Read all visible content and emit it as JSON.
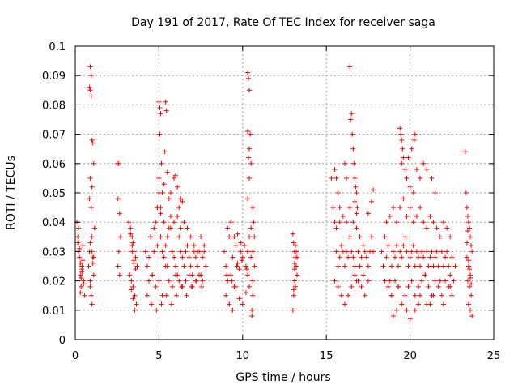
{
  "chart_data": {
    "type": "scatter",
    "title": "Day 191 of 2017, Rate Of TEC Index for receiver saga",
    "xlabel": "GPS time / hours",
    "ylabel": "ROTI / TECUs",
    "xlim": [
      0,
      25
    ],
    "ylim": [
      0,
      0.1
    ],
    "xticks": [
      "0",
      "5",
      "10",
      "15",
      "20",
      "25"
    ],
    "yticks": [
      "0",
      "0.01",
      "0.02",
      "0.03",
      "0.04",
      "0.05",
      "0.06",
      "0.07",
      "0.08",
      "0.09",
      "0.1"
    ],
    "grid": true,
    "marker": "+",
    "series_color": "#ff0000",
    "series": [
      {
        "x": [
          0.1,
          0.15,
          0.2,
          0.25,
          0.3,
          0.35,
          0.4,
          0.45,
          0.5,
          0.55,
          0.2,
          0.3,
          0.4,
          0.5,
          0.25,
          0.35,
          0.45,
          0.15,
          0.3,
          0.4,
          0.8,
          0.85,
          0.9,
          0.95,
          1.0,
          1.05,
          1.1,
          1.15,
          0.9,
          0.95,
          0.85,
          0.9,
          0.95,
          1.0,
          1.05,
          0.9,
          1.0,
          1.1,
          0.85,
          0.95,
          1.0,
          1.05,
          0.9,
          1.0,
          1.1,
          0.9,
          2.5,
          2.6,
          2.55,
          2.65,
          2.7,
          2.6,
          2.55,
          2.65,
          3.2,
          3.3,
          3.4,
          3.5,
          3.6,
          3.7,
          3.25,
          3.35,
          3.45,
          3.55,
          3.65,
          3.3,
          3.4,
          3.5,
          3.6,
          3.35,
          3.45,
          3.55,
          3.4,
          3.5,
          3.45,
          4.2,
          4.3,
          4.4,
          4.5,
          4.6,
          4.7,
          4.8,
          4.9,
          5.0,
          5.1,
          5.2,
          5.3,
          5.4,
          5.5,
          5.6,
          5.7,
          5.8,
          5.9,
          6.0,
          6.1,
          6.2,
          6.3,
          6.4,
          6.5,
          6.6,
          6.7,
          6.8,
          6.9,
          7.0,
          7.1,
          7.2,
          7.3,
          7.4,
          7.5,
          7.6,
          7.7,
          7.8,
          4.4,
          4.6,
          4.8,
          5.0,
          5.2,
          5.4,
          5.6,
          5.8,
          6.0,
          6.2,
          6.4,
          6.6,
          6.8,
          7.0,
          7.2,
          7.4,
          7.6,
          4.5,
          4.7,
          4.9,
          5.1,
          5.3,
          5.5,
          5.7,
          5.9,
          6.1,
          6.3,
          6.5,
          6.7,
          6.9,
          7.1,
          7.3,
          7.5,
          7.7,
          4.3,
          4.55,
          4.85,
          5.15,
          5.45,
          5.75,
          6.05,
          6.35,
          6.65,
          6.95,
          7.25,
          7.55,
          5.0,
          5.05,
          5.1,
          5.05,
          5.15,
          5.4,
          5.45,
          5.35,
          5.3,
          5.5,
          5.0,
          5.2,
          5.6,
          5.9,
          6.0,
          6.1,
          6.2,
          6.3,
          4.9,
          5.1,
          5.7,
          6.4,
          8.9,
          9.0,
          9.1,
          9.2,
          9.3,
          9.4,
          9.5,
          9.6,
          9.7,
          9.8,
          9.9,
          10.0,
          10.1,
          10.2,
          10.3,
          10.4,
          10.5,
          10.6,
          10.7,
          9.0,
          9.2,
          9.4,
          9.6,
          9.8,
          10.0,
          10.2,
          10.4,
          10.6,
          9.1,
          9.3,
          9.5,
          9.7,
          9.9,
          10.1,
          10.3,
          10.5,
          9.05,
          9.35,
          9.65,
          9.95,
          10.25,
          10.55,
          10.3,
          10.35,
          10.4,
          10.3,
          10.45,
          10.4,
          10.35,
          10.5,
          10.4,
          10.3,
          10.6,
          10.65,
          10.7,
          10.6,
          10.55,
          13.0,
          13.05,
          13.1,
          13.15,
          13.2,
          13.25,
          13.1,
          13.15,
          13.05,
          13.2,
          13.1,
          13.0,
          13.15,
          13.1,
          13.25,
          13.05,
          15.3,
          15.4,
          15.5,
          15.6,
          15.7,
          15.8,
          15.9,
          16.0,
          16.1,
          16.2,
          16.3,
          16.4,
          16.5,
          16.6,
          16.7,
          16.8,
          16.9,
          17.0,
          17.1,
          17.2,
          17.3,
          17.4,
          17.5,
          17.6,
          17.7,
          17.8,
          15.5,
          15.7,
          15.9,
          16.1,
          16.3,
          16.5,
          16.7,
          16.9,
          17.1,
          17.3,
          17.5,
          15.6,
          15.8,
          16.0,
          16.2,
          16.4,
          16.6,
          16.8,
          17.0,
          17.2,
          16.4,
          16.5,
          16.45,
          16.55,
          16.6,
          16.65,
          16.7,
          16.75,
          16.8,
          16.7,
          16.85,
          16.8,
          15.5,
          15.6,
          15.7,
          15.8,
          16.1,
          16.2,
          17.8,
          17.7,
          17.5,
          18.3,
          18.4,
          18.5,
          18.6,
          18.7,
          18.8,
          18.9,
          19.0,
          19.1,
          19.2,
          19.3,
          19.4,
          19.5,
          19.6,
          19.7,
          19.8,
          19.9,
          20.0,
          20.1,
          20.2,
          20.3,
          20.4,
          20.5,
          20.6,
          20.7,
          20.8,
          20.9,
          21.0,
          21.1,
          21.2,
          21.3,
          21.4,
          21.5,
          21.6,
          21.7,
          21.8,
          21.9,
          22.0,
          22.1,
          22.2,
          22.3,
          22.4,
          22.5,
          22.6,
          22.7,
          18.5,
          18.7,
          18.9,
          19.1,
          19.3,
          19.5,
          19.7,
          19.9,
          20.1,
          20.3,
          20.5,
          20.7,
          20.9,
          21.1,
          21.3,
          21.5,
          21.7,
          21.9,
          22.1,
          22.3,
          22.5,
          18.6,
          18.8,
          19.0,
          19.2,
          19.4,
          19.6,
          19.8,
          20.0,
          20.2,
          20.4,
          20.6,
          20.8,
          21.0,
          21.2,
          21.4,
          21.6,
          21.8,
          22.0,
          22.2,
          22.4,
          19.4,
          19.45,
          19.5,
          19.55,
          19.6,
          19.5,
          19.7,
          19.8,
          20.0,
          20.2,
          20.3,
          20.25,
          20.1,
          19.9,
          20.4,
          20.6,
          20.8,
          21.0,
          21.3,
          21.5,
          19.0,
          19.2,
          20.0,
          20.3,
          20.5,
          21.2,
          18.9,
          19.3,
          19.8,
          20.6,
          21.0,
          21.4,
          22.0,
          22.4,
          23.3,
          23.35,
          23.4,
          23.45,
          23.5,
          23.55,
          23.6,
          23.65,
          23.7,
          23.4,
          23.5,
          23.6,
          23.45,
          23.55,
          23.65,
          23.5,
          23.6,
          23.7,
          23.4,
          23.5,
          23.6,
          23.45,
          23.55,
          23.65
        ],
        "y": [
          0.04,
          0.035,
          0.03,
          0.028,
          0.022,
          0.018,
          0.025,
          0.032,
          0.02,
          0.015,
          0.038,
          0.026,
          0.024,
          0.019,
          0.031,
          0.021,
          0.027,
          0.033,
          0.016,
          0.023,
          0.025,
          0.03,
          0.02,
          0.015,
          0.035,
          0.028,
          0.022,
          0.038,
          0.093,
          0.09,
          0.086,
          0.085,
          0.083,
          0.068,
          0.067,
          0.055,
          0.052,
          0.06,
          0.048,
          0.045,
          0.03,
          0.026,
          0.018,
          0.012,
          0.028,
          0.033,
          0.06,
          0.06,
          0.048,
          0.043,
          0.035,
          0.03,
          0.025,
          0.022,
          0.04,
          0.038,
          0.035,
          0.03,
          0.028,
          0.025,
          0.022,
          0.02,
          0.018,
          0.015,
          0.012,
          0.036,
          0.032,
          0.027,
          0.024,
          0.017,
          0.014,
          0.01,
          0.03,
          0.026,
          0.033,
          0.03,
          0.025,
          0.028,
          0.035,
          0.022,
          0.03,
          0.04,
          0.045,
          0.05,
          0.045,
          0.03,
          0.028,
          0.032,
          0.025,
          0.038,
          0.042,
          0.03,
          0.028,
          0.025,
          0.022,
          0.035,
          0.03,
          0.028,
          0.025,
          0.03,
          0.032,
          0.028,
          0.025,
          0.022,
          0.03,
          0.028,
          0.025,
          0.03,
          0.022,
          0.028,
          0.032,
          0.025,
          0.02,
          0.022,
          0.018,
          0.02,
          0.015,
          0.025,
          0.02,
          0.018,
          0.022,
          0.02,
          0.018,
          0.02,
          0.022,
          0.018,
          0.02,
          0.022,
          0.02,
          0.035,
          0.038,
          0.032,
          0.035,
          0.04,
          0.035,
          0.038,
          0.04,
          0.042,
          0.038,
          0.04,
          0.038,
          0.035,
          0.032,
          0.03,
          0.035,
          0.03,
          0.015,
          0.012,
          0.01,
          0.012,
          0.015,
          0.012,
          0.015,
          0.018,
          0.015,
          0.018,
          0.02,
          0.018,
          0.081,
          0.079,
          0.077,
          0.07,
          0.06,
          0.081,
          0.078,
          0.064,
          0.053,
          0.057,
          0.055,
          0.05,
          0.048,
          0.055,
          0.056,
          0.052,
          0.045,
          0.048,
          0.045,
          0.043,
          0.05,
          0.047,
          0.03,
          0.025,
          0.02,
          0.035,
          0.022,
          0.028,
          0.018,
          0.032,
          0.026,
          0.024,
          0.03,
          0.028,
          0.032,
          0.025,
          0.022,
          0.035,
          0.028,
          0.02,
          0.025,
          0.015,
          0.012,
          0.01,
          0.018,
          0.014,
          0.012,
          0.016,
          0.018,
          0.015,
          0.038,
          0.04,
          0.035,
          0.036,
          0.033,
          0.032,
          0.03,
          0.038,
          0.022,
          0.02,
          0.025,
          0.027,
          0.024,
          0.01,
          0.091,
          0.089,
          0.085,
          0.071,
          0.07,
          0.065,
          0.062,
          0.06,
          0.055,
          0.048,
          0.045,
          0.04,
          0.035,
          0.03,
          0.008,
          0.036,
          0.033,
          0.03,
          0.028,
          0.025,
          0.022,
          0.02,
          0.018,
          0.015,
          0.03,
          0.026,
          0.01,
          0.032,
          0.024,
          0.028,
          0.017,
          0.055,
          0.045,
          0.04,
          0.03,
          0.025,
          0.028,
          0.032,
          0.03,
          0.025,
          0.03,
          0.028,
          0.035,
          0.03,
          0.028,
          0.025,
          0.02,
          0.03,
          0.025,
          0.028,
          0.022,
          0.03,
          0.028,
          0.025,
          0.03,
          0.035,
          0.03,
          0.02,
          0.018,
          0.015,
          0.012,
          0.015,
          0.018,
          0.022,
          0.02,
          0.018,
          0.015,
          0.02,
          0.038,
          0.04,
          0.042,
          0.04,
          0.045,
          0.04,
          0.038,
          0.035,
          0.032,
          0.093,
          0.077,
          0.075,
          0.07,
          0.065,
          0.06,
          0.055,
          0.052,
          0.05,
          0.047,
          0.045,
          0.043,
          0.058,
          0.055,
          0.05,
          0.045,
          0.06,
          0.055,
          0.051,
          0.047,
          0.043,
          0.03,
          0.025,
          0.035,
          0.028,
          0.032,
          0.02,
          0.025,
          0.03,
          0.028,
          0.032,
          0.025,
          0.03,
          0.028,
          0.032,
          0.035,
          0.03,
          0.025,
          0.028,
          0.03,
          0.032,
          0.025,
          0.03,
          0.028,
          0.025,
          0.03,
          0.028,
          0.022,
          0.03,
          0.025,
          0.028,
          0.03,
          0.025,
          0.028,
          0.03,
          0.025,
          0.02,
          0.03,
          0.025,
          0.028,
          0.03,
          0.025,
          0.022,
          0.028,
          0.02,
          0.025,
          0.02,
          0.018,
          0.015,
          0.02,
          0.018,
          0.012,
          0.015,
          0.018,
          0.02,
          0.015,
          0.018,
          0.02,
          0.022,
          0.018,
          0.015,
          0.02,
          0.018,
          0.015,
          0.02,
          0.018,
          0.015,
          0.04,
          0.042,
          0.045,
          0.04,
          0.045,
          0.048,
          0.042,
          0.045,
          0.04,
          0.042,
          0.045,
          0.04,
          0.038,
          0.042,
          0.04,
          0.038,
          0.035,
          0.04,
          0.038,
          0.035,
          0.072,
          0.07,
          0.068,
          0.065,
          0.062,
          0.06,
          0.058,
          0.055,
          0.052,
          0.05,
          0.07,
          0.068,
          0.065,
          0.062,
          0.058,
          0.055,
          0.06,
          0.058,
          0.055,
          0.05,
          0.008,
          0.01,
          0.007,
          0.01,
          0.012,
          0.012,
          0.015,
          0.018,
          0.01,
          0.015,
          0.012,
          0.015,
          0.012,
          0.018,
          0.064,
          0.05,
          0.045,
          0.042,
          0.04,
          0.038,
          0.035,
          0.032,
          0.03,
          0.028,
          0.025,
          0.022,
          0.02,
          0.018,
          0.015,
          0.012,
          0.01,
          0.008,
          0.033,
          0.027,
          0.021,
          0.037,
          0.024,
          0.019
        ]
      }
    ]
  }
}
